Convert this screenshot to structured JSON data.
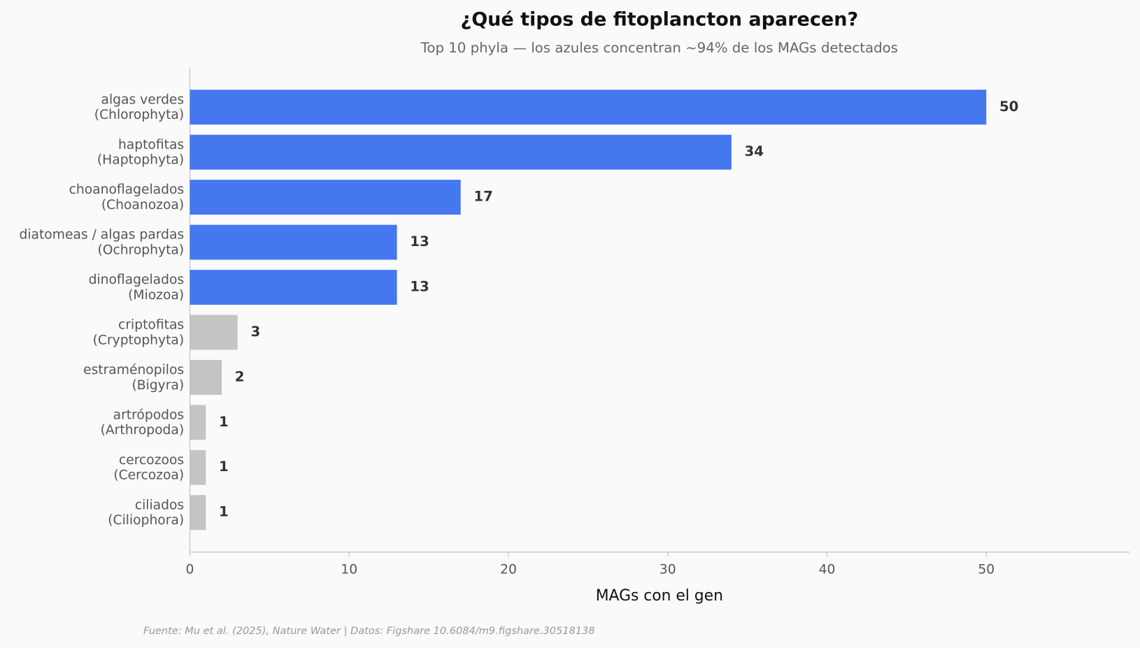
{
  "chart_data": {
    "type": "barh",
    "title": "¿Qué tipos de fitoplancton aparecen?",
    "subtitle": "Top 10 phyla — los azules concentran ~94% de los MAGs detectados",
    "xlabel": "MAGs con el gen",
    "source": "Fuente: Mu et al. (2025), Nature Water | Datos: Figshare 10.6084/m9.figshare.30518138",
    "categories": [
      "algas verdes\n(Chlorophyta)",
      "haptofitas\n(Haptophyta)",
      "choanoflagelados\n(Choanozoa)",
      "diatomeas / algas pardas\n(Ochrophyta)",
      "dinoflagelados\n(Miozoa)",
      "criptofitas\n(Cryptophyta)",
      "estraménopilos\n(Bigyra)",
      "artrópodos\n(Arthropoda)",
      "cercozoos\n(Cercozoa)",
      "ciliados\n(Ciliophora)"
    ],
    "values": [
      50,
      34,
      17,
      13,
      13,
      3,
      2,
      1,
      1,
      1
    ],
    "colors": [
      "#4577EE",
      "#4577EE",
      "#4577EE",
      "#4577EE",
      "#4577EE",
      "#C4C4C4",
      "#C4C4C4",
      "#C4C4C4",
      "#C4C4C4",
      "#C4C4C4"
    ],
    "xlim": [
      0,
      59
    ],
    "xticks": [
      0,
      10,
      20,
      30,
      40,
      50
    ]
  }
}
